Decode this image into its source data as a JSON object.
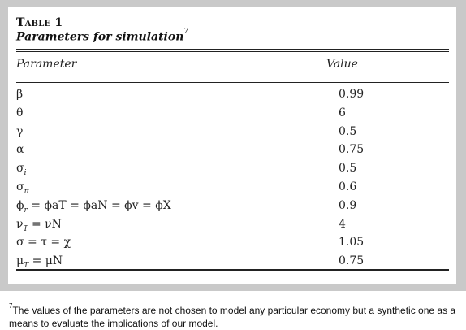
{
  "table": {
    "number_label": "Table 1",
    "title": "Parameters for simulation",
    "title_footnote_mark": "7",
    "headers": {
      "parameter": "Parameter",
      "value": "Value"
    },
    "rows": [
      {
        "parameter_main": "β",
        "parameter_sub": "",
        "parameter_rest": "",
        "value": "0.99"
      },
      {
        "parameter_main": "θ",
        "parameter_sub": "",
        "parameter_rest": "",
        "value": "6"
      },
      {
        "parameter_main": "γ",
        "parameter_sub": "",
        "parameter_rest": "",
        "value": "0.5"
      },
      {
        "parameter_main": "α",
        "parameter_sub": "",
        "parameter_rest": "",
        "value": "0.75"
      },
      {
        "parameter_main": "σ",
        "parameter_sub": "i",
        "parameter_rest": "",
        "value": "0.5"
      },
      {
        "parameter_main": "σ",
        "parameter_sub": "π",
        "parameter_rest": "",
        "value": "0.6"
      },
      {
        "parameter_main": "ϕ",
        "parameter_sub": "r",
        "parameter_rest": " = ϕaT = ϕaN = ϕv = ϕX",
        "value": "0.9"
      },
      {
        "parameter_main": "ν",
        "parameter_sub": "T",
        "parameter_rest": " = νN",
        "value": "4"
      },
      {
        "parameter_main": "σ = τ = χ",
        "parameter_sub": "",
        "parameter_rest": "",
        "value": "1.05"
      },
      {
        "parameter_main": "μ",
        "parameter_sub": "T",
        "parameter_rest": " = μN",
        "value": "0.75"
      }
    ]
  },
  "footnote": {
    "mark": "7",
    "text": "The values of the parameters are not chosen to model any particular economy but a synthetic one as a means to evaluate the implications of our model."
  }
}
